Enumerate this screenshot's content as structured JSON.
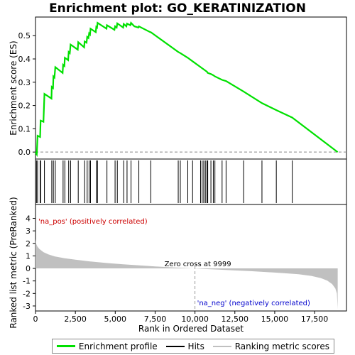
{
  "chart_data": {
    "type": "line",
    "title": "Enrichment plot: GO_KERATINIZATION",
    "top_panel": {
      "ylabel": "Enrichment score (ES)",
      "ylim": [
        -0.03,
        0.58
      ],
      "yticks": [
        0.0,
        0.1,
        0.2,
        0.3,
        0.4,
        0.5
      ],
      "ytick_labels": [
        "0.0",
        "0.1",
        "0.2",
        "0.3",
        "0.4",
        "0.5"
      ],
      "series": [
        {
          "name": "Enrichment profile",
          "color": "#00e000",
          "points": [
            [
              0,
              0.0
            ],
            [
              80,
              -0.01
            ],
            [
              130,
              0.07
            ],
            [
              290,
              0.065
            ],
            [
              320,
              0.135
            ],
            [
              500,
              0.13
            ],
            [
              560,
              0.25
            ],
            [
              1000,
              0.23
            ],
            [
              1020,
              0.28
            ],
            [
              1100,
              0.275
            ],
            [
              1120,
              0.325
            ],
            [
              1190,
              0.32
            ],
            [
              1240,
              0.365
            ],
            [
              1700,
              0.34
            ],
            [
              1730,
              0.375
            ],
            [
              1810,
              0.37
            ],
            [
              1840,
              0.405
            ],
            [
              2050,
              0.395
            ],
            [
              2080,
              0.43
            ],
            [
              2150,
              0.425
            ],
            [
              2200,
              0.462
            ],
            [
              2650,
              0.44
            ],
            [
              2680,
              0.472
            ],
            [
              3050,
              0.45
            ],
            [
              3080,
              0.475
            ],
            [
              3200,
              0.47
            ],
            [
              3240,
              0.495
            ],
            [
              3320,
              0.49
            ],
            [
              3360,
              0.51
            ],
            [
              3420,
              0.505
            ],
            [
              3450,
              0.53
            ],
            [
              3780,
              0.515
            ],
            [
              3810,
              0.538
            ],
            [
              3860,
              0.535
            ],
            [
              3890,
              0.555
            ],
            [
              4450,
              0.53
            ],
            [
              4480,
              0.545
            ],
            [
              4950,
              0.525
            ],
            [
              4990,
              0.54
            ],
            [
              5090,
              0.535
            ],
            [
              5130,
              0.553
            ],
            [
              5500,
              0.535
            ],
            [
              5530,
              0.55
            ],
            [
              5700,
              0.54
            ],
            [
              5740,
              0.552
            ],
            [
              5950,
              0.545
            ],
            [
              5990,
              0.555
            ],
            [
              6200,
              0.54
            ],
            [
              6450,
              0.535
            ],
            [
              6480,
              0.54
            ],
            [
              7200,
              0.515
            ],
            [
              7230,
              0.515
            ],
            [
              8950,
              0.43
            ],
            [
              9080,
              0.425
            ],
            [
              9550,
              0.405
            ],
            [
              9850,
              0.39
            ],
            [
              10350,
              0.365
            ],
            [
              10450,
              0.36
            ],
            [
              10550,
              0.355
            ],
            [
              10650,
              0.35
            ],
            [
              10750,
              0.345
            ],
            [
              10800,
              0.34
            ],
            [
              11000,
              0.335
            ],
            [
              11150,
              0.33
            ],
            [
              11250,
              0.325
            ],
            [
              11700,
              0.31
            ],
            [
              11950,
              0.305
            ],
            [
              13050,
              0.26
            ],
            [
              14200,
              0.21
            ],
            [
              15100,
              0.18
            ],
            [
              16100,
              0.148
            ],
            [
              18950,
              0.0
            ]
          ]
        }
      ],
      "hit_ranks": [
        60,
        130,
        290,
        320,
        560,
        1020,
        1120,
        1240,
        1730,
        1840,
        2080,
        2200,
        2680,
        3080,
        3240,
        3360,
        3450,
        3810,
        3890,
        4480,
        4990,
        5130,
        5530,
        5740,
        5990,
        6480,
        7230,
        8950,
        9080,
        9550,
        9850,
        10350,
        10450,
        10550,
        10650,
        10750,
        10800,
        11000,
        11150,
        11250,
        11700,
        11950,
        13050,
        14200,
        15100,
        16100
      ]
    },
    "bottom_panel": {
      "ylabel": "Ranked list metric (PreRanked)",
      "xlabel": "Rank in Ordered Dataset",
      "ylim": [
        -3.4,
        4.2
      ],
      "yticks": [
        -3,
        -2,
        -1,
        0,
        1,
        2,
        3,
        4
      ],
      "ytick_labels": [
        "-3",
        "-2",
        "-1",
        "0",
        "1",
        "2",
        "3",
        "4"
      ],
      "zero_cross": 9999,
      "zero_cross_label": "Zero cross at 9999",
      "pos_label": "'na_pos' (positively correlated)",
      "neg_label": "'na_neg' (negatively correlated)",
      "metric_profile": [
        [
          0,
          2.35
        ],
        [
          30,
          2.0
        ],
        [
          120,
          1.75
        ],
        [
          250,
          1.55
        ],
        [
          500,
          1.3
        ],
        [
          800,
          1.12
        ],
        [
          1200,
          0.96
        ],
        [
          1800,
          0.82
        ],
        [
          2500,
          0.7
        ],
        [
          3500,
          0.55
        ],
        [
          4500,
          0.43
        ],
        [
          5500,
          0.33
        ],
        [
          6500,
          0.24
        ],
        [
          7500,
          0.16
        ],
        [
          8500,
          0.09
        ],
        [
          9500,
          0.03
        ],
        [
          9999,
          0.0
        ],
        [
          10500,
          -0.04
        ],
        [
          11500,
          -0.1
        ],
        [
          12500,
          -0.16
        ],
        [
          13500,
          -0.22
        ],
        [
          14500,
          -0.29
        ],
        [
          15500,
          -0.37
        ],
        [
          16500,
          -0.47
        ],
        [
          17300,
          -0.6
        ],
        [
          17900,
          -0.78
        ],
        [
          18300,
          -0.98
        ],
        [
          18600,
          -1.25
        ],
        [
          18800,
          -1.6
        ],
        [
          18900,
          -2.0
        ],
        [
          18950,
          -3.25
        ]
      ]
    },
    "xlim": [
      0,
      19500
    ],
    "xticks": [
      0,
      2500,
      5000,
      7500,
      10000,
      12500,
      15000,
      17500
    ],
    "xtick_labels": [
      "0",
      "2,500",
      "5,000",
      "7,500",
      "10,000",
      "12,500",
      "15,000",
      "17,500"
    ],
    "n_genes": 18950,
    "legend_position": "bottom",
    "colors": {
      "es_line": "#00e000",
      "hit_line": "#000000",
      "metric_fill": "#c0c0c0",
      "pos_text": "#cc0000",
      "neg_text": "#0000cc",
      "heat_pos": "#ff0000",
      "heat_neg": "#0000ff"
    }
  },
  "legend": {
    "es_label": "Enrichment profile",
    "hits_label": "Hits",
    "rank_label": "Ranking metric scores"
  }
}
